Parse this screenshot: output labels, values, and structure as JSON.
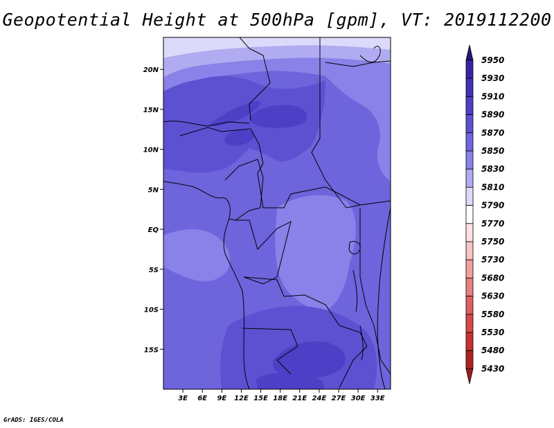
{
  "title": "Geopotential Height at 500hPa [gpm], VT: 2019112200",
  "credit": "GrADS: IGES/COLA",
  "map": {
    "lon_range": [
      0,
      35
    ],
    "lat_range": [
      -20,
      24
    ],
    "x_ticks": [
      {
        "value": 3,
        "label": "3E"
      },
      {
        "value": 6,
        "label": "6E"
      },
      {
        "value": 9,
        "label": "9E"
      },
      {
        "value": 12,
        "label": "12E"
      },
      {
        "value": 15,
        "label": "15E"
      },
      {
        "value": 18,
        "label": "18E"
      },
      {
        "value": 21,
        "label": "21E"
      },
      {
        "value": 24,
        "label": "24E"
      },
      {
        "value": 27,
        "label": "27E"
      },
      {
        "value": 30,
        "label": "30E"
      },
      {
        "value": 33,
        "label": "33E"
      }
    ],
    "y_ticks": [
      {
        "value": 20,
        "label": "20N"
      },
      {
        "value": 15,
        "label": "15N"
      },
      {
        "value": 10,
        "label": "10N"
      },
      {
        "value": 5,
        "label": "5N"
      },
      {
        "value": 0,
        "label": "EQ"
      },
      {
        "value": -5,
        "label": "5S"
      },
      {
        "value": -10,
        "label": "10S"
      },
      {
        "value": -15,
        "label": "15S"
      }
    ]
  },
  "colorbar": {
    "levels": [
      {
        "label": "5950",
        "color": "#2b1f8f"
      },
      {
        "label": "5930",
        "color": "#3525a6"
      },
      {
        "label": "5910",
        "color": "#3f31b8"
      },
      {
        "label": "5890",
        "color": "#4d3fc6"
      },
      {
        "label": "5870",
        "color": "#5d51d2"
      },
      {
        "label": "5850",
        "color": "#7066de"
      },
      {
        "label": "5830",
        "color": "#8a82e8"
      },
      {
        "label": "5810",
        "color": "#b1acf1"
      },
      {
        "label": "5790",
        "color": "#dcdafa"
      },
      {
        "label": "5770",
        "color": "#ffffff"
      },
      {
        "label": "5750",
        "color": "#fde2e2"
      },
      {
        "label": "5730",
        "color": "#f9c4c4"
      },
      {
        "label": "5680",
        "color": "#f1a0a0"
      },
      {
        "label": "5630",
        "color": "#e88080"
      },
      {
        "label": "5580",
        "color": "#e06060"
      },
      {
        "label": "5530",
        "color": "#d94848"
      },
      {
        "label": "5480",
        "color": "#c83232"
      },
      {
        "label": "5430",
        "color": "#b02222"
      }
    ],
    "top_color": "#21177a",
    "bottom_color": "#a01c1c"
  }
}
